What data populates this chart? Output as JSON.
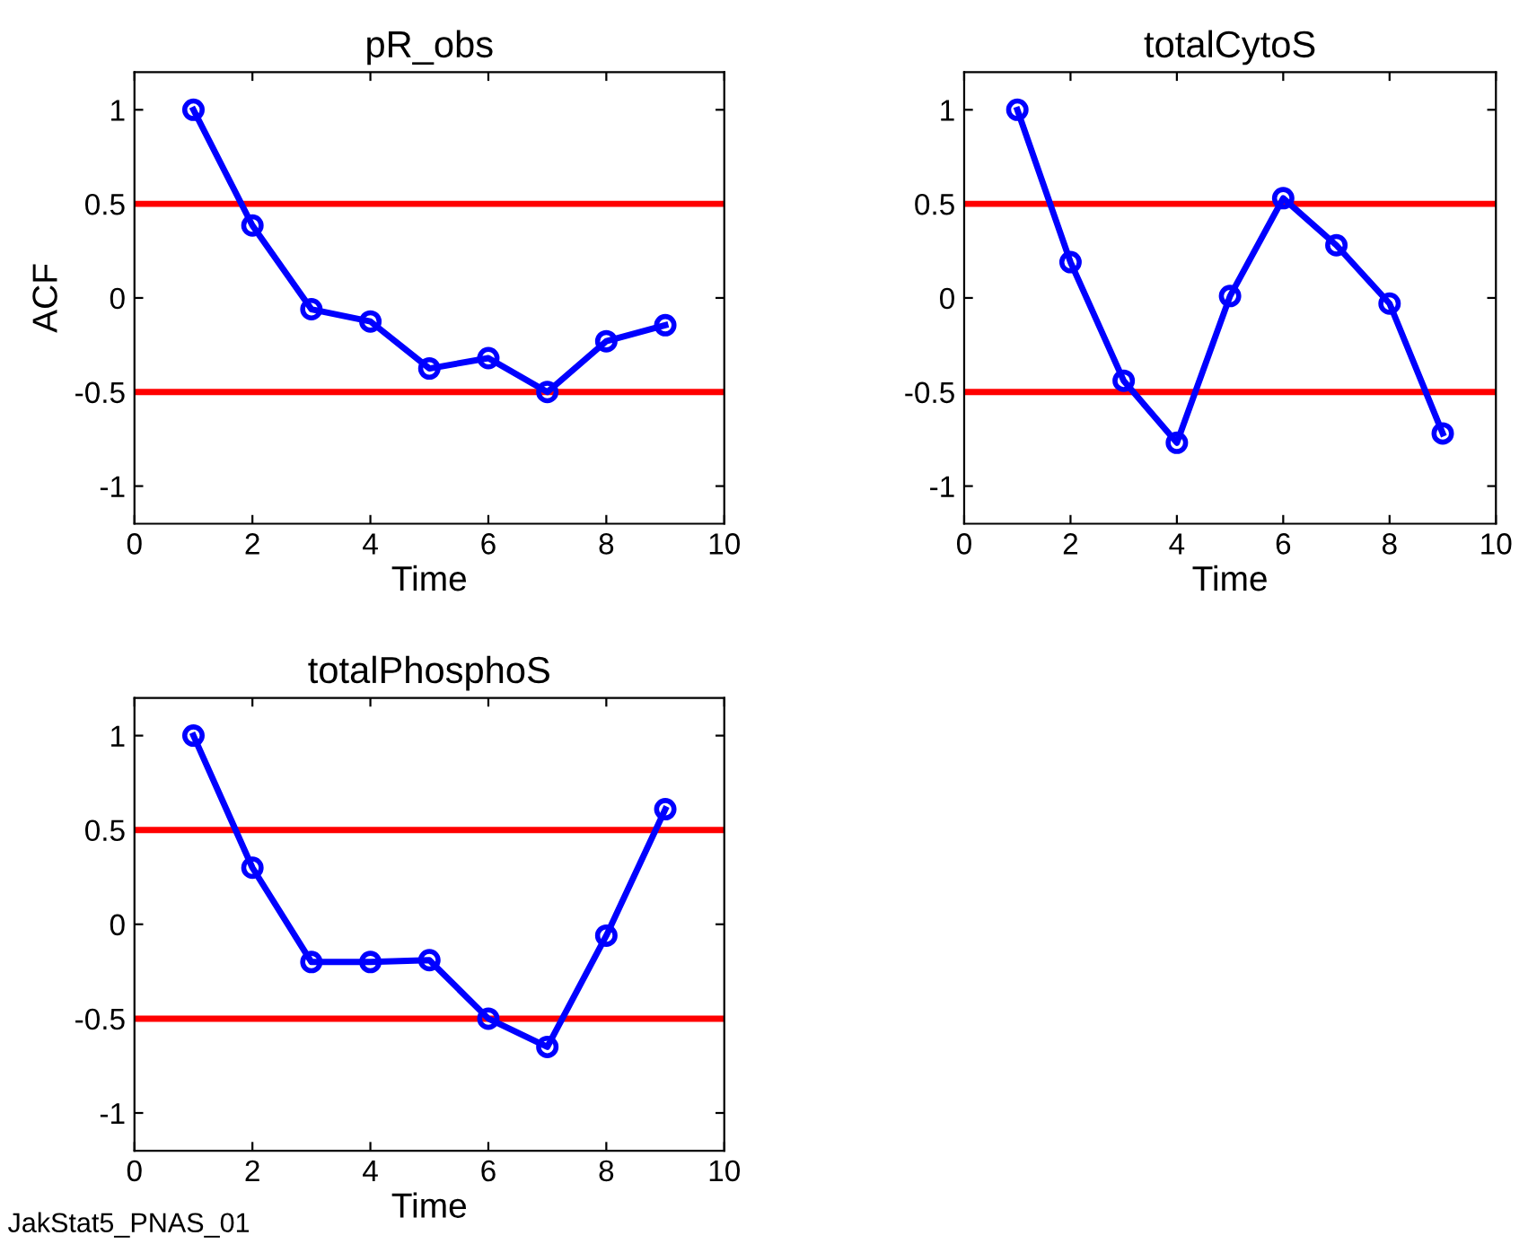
{
  "chart_data": [
    {
      "type": "line",
      "title": "pR_obs",
      "xlabel": "Time",
      "ylabel": "ACF",
      "x": [
        1,
        2,
        3,
        4,
        5,
        6,
        7,
        8,
        9
      ],
      "series": [
        {
          "color": "#0000ff",
          "values": [
            1,
            0.385,
            -0.06,
            -0.125,
            -0.375,
            -0.32,
            -0.5,
            -0.23,
            -0.145
          ]
        }
      ],
      "xlim": [
        0,
        10
      ],
      "xticks": [
        0,
        2,
        4,
        6,
        8,
        10
      ],
      "ylim": [
        -1.2,
        1.2
      ],
      "yticks": [
        -1,
        -0.5,
        0,
        0.5,
        1
      ],
      "marker": "circle",
      "ref_lines": [
        {
          "axis": "y",
          "value": 0.5,
          "color": "#ff0000"
        },
        {
          "axis": "y",
          "value": -0.5,
          "color": "#ff0000"
        }
      ],
      "grid": false,
      "legend": false
    },
    {
      "type": "line",
      "title": "totalCytoS",
      "xlabel": "Time",
      "x": [
        1,
        2,
        3,
        4,
        5,
        6,
        7,
        8,
        9
      ],
      "series": [
        {
          "color": "#0000ff",
          "values": [
            1,
            0.19,
            -0.44,
            -0.77,
            0.01,
            0.53,
            0.28,
            -0.03,
            -0.72
          ]
        }
      ],
      "xlim": [
        0,
        10
      ],
      "xticks": [
        0,
        2,
        4,
        6,
        8,
        10
      ],
      "ylim": [
        -1.2,
        1.2
      ],
      "yticks": [
        -1,
        -0.5,
        0,
        0.5,
        1
      ],
      "marker": "circle",
      "ref_lines": [
        {
          "axis": "y",
          "value": 0.5,
          "color": "#ff0000"
        },
        {
          "axis": "y",
          "value": -0.5,
          "color": "#ff0000"
        }
      ],
      "grid": false,
      "legend": false
    },
    {
      "type": "line",
      "title": "totalPhosphoS",
      "xlabel": "Time",
      "x": [
        1,
        2,
        3,
        4,
        5,
        6,
        7,
        8,
        9
      ],
      "series": [
        {
          "color": "#0000ff",
          "values": [
            1,
            0.3,
            -0.2,
            -0.2,
            -0.19,
            -0.5,
            -0.65,
            -0.06,
            0.61
          ]
        }
      ],
      "xlim": [
        0,
        10
      ],
      "xticks": [
        0,
        2,
        4,
        6,
        8,
        10
      ],
      "ylim": [
        -1.2,
        1.2
      ],
      "yticks": [
        -1,
        -0.5,
        0,
        0.5,
        1
      ],
      "marker": "circle",
      "ref_lines": [
        {
          "axis": "y",
          "value": 0.5,
          "color": "#ff0000"
        },
        {
          "axis": "y",
          "value": -0.5,
          "color": "#ff0000"
        }
      ],
      "grid": false,
      "legend": false,
      "annotations": [
        "JakStat5_PNAS_01"
      ]
    }
  ]
}
